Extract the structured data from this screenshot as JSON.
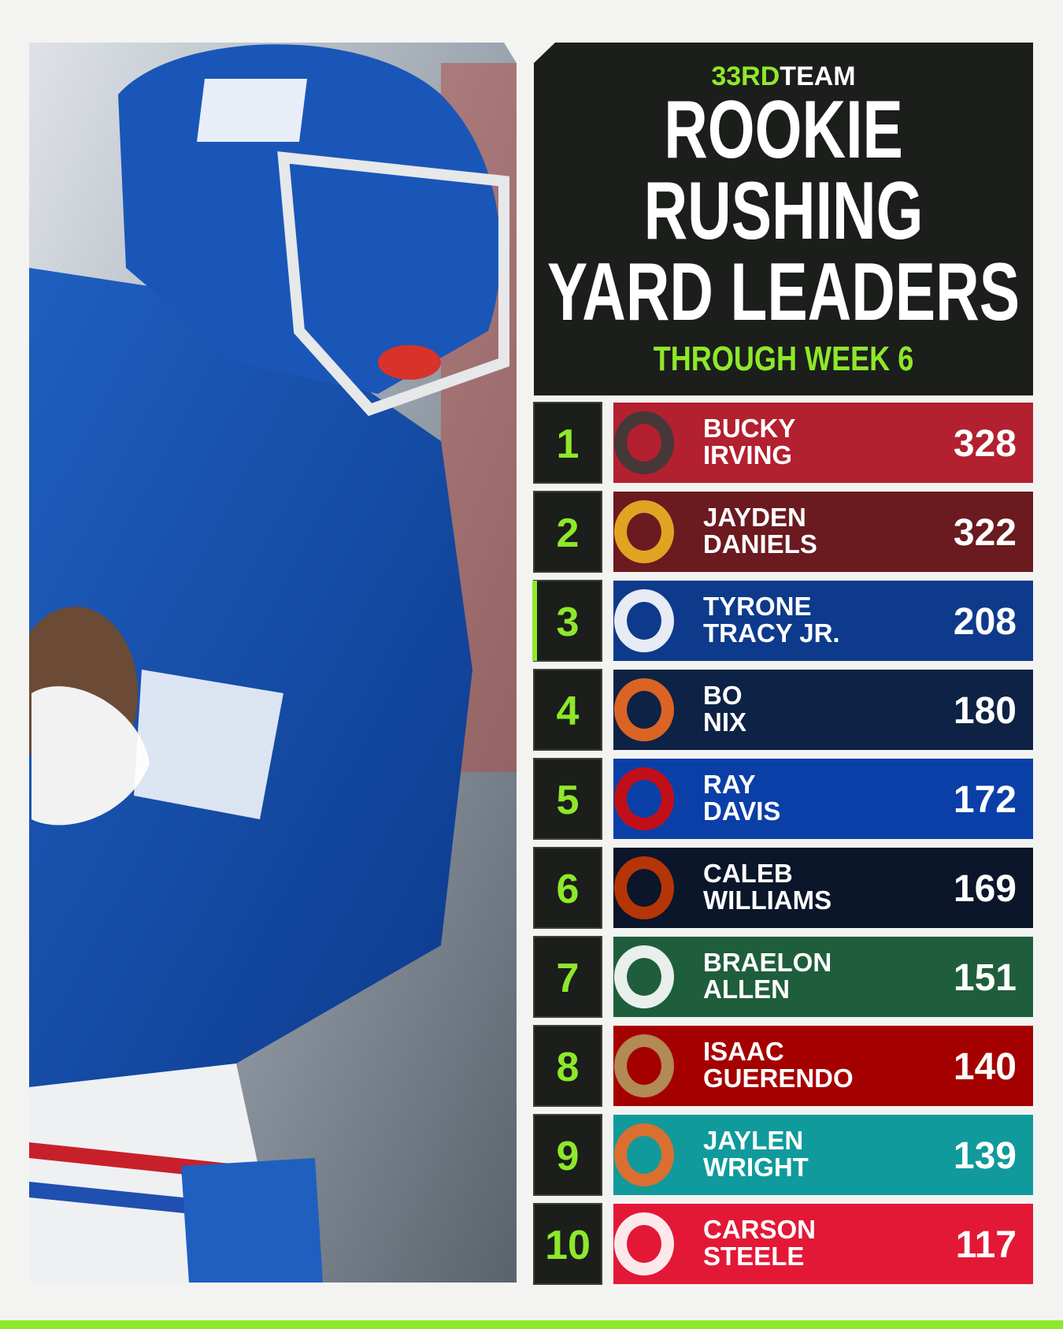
{
  "header": {
    "brand_a": "33RD",
    "brand_b": "TEAM",
    "title": [
      "ROOKIE",
      "RUSHING",
      "YARD LEADERS"
    ],
    "subtitle": "THROUGH WEEK 6"
  },
  "rows": [
    {
      "rank": "1",
      "first": "BUCKY",
      "last": "IRVING",
      "yards": 328,
      "color": "#b3202f",
      "accent": "#3a3a3a"
    },
    {
      "rank": "2",
      "first": "JAYDEN",
      "last": "DANIELS",
      "yards": 322,
      "color": "#6b1a1f",
      "accent": "#f0b323"
    },
    {
      "rank": "3",
      "first": "TYRONE",
      "last": "TRACY JR.",
      "yards": 208,
      "color": "#0e3a8c",
      "accent": "#ffffff",
      "highlight": true
    },
    {
      "rank": "4",
      "first": "BO",
      "last": "NIX",
      "yards": 180,
      "color": "#0d2245",
      "accent": "#f26b21"
    },
    {
      "rank": "5",
      "first": "RAY",
      "last": "DAVIS",
      "yards": 172,
      "color": "#0b3fa8",
      "accent": "#d50a0a"
    },
    {
      "rank": "6",
      "first": "CALEB",
      "last": "WILLIAMS",
      "yards": 169,
      "color": "#0b162a",
      "accent": "#c83803"
    },
    {
      "rank": "7",
      "first": "BRAELON",
      "last": "ALLEN",
      "yards": 151,
      "color": "#1f5e3c",
      "accent": "#ffffff"
    },
    {
      "rank": "8",
      "first": "ISAAC",
      "last": "GUERENDO",
      "yards": 140,
      "color": "#a50000",
      "accent": "#b3995d"
    },
    {
      "rank": "9",
      "first": "JAYLEN",
      "last": "WRIGHT",
      "yards": 139,
      "color": "#109a9c",
      "accent": "#f26a24"
    },
    {
      "rank": "10",
      "first": "CARSON",
      "last": "STEELE",
      "yards": 117,
      "color": "#e31837",
      "accent": "#ffffff"
    }
  ]
}
